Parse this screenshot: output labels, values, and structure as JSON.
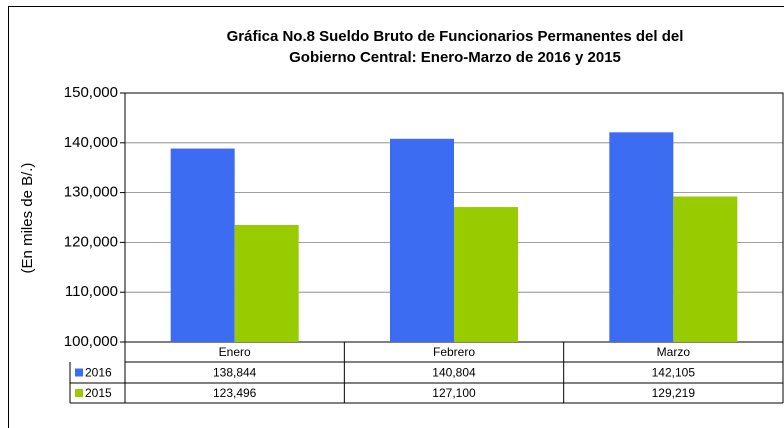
{
  "chart_data": {
    "type": "bar",
    "title": [
      "Gráfica No.8 Sueldo Bruto de Funcionarios Permanentes del del",
      "Gobierno Central: Enero-Marzo de 2016 y 2015"
    ],
    "y_label": "(En miles de B/.)",
    "categories": [
      "Enero",
      "Febrero",
      "Marzo"
    ],
    "series": [
      {
        "name": "2016",
        "color": "#3b6cf2",
        "values": [
          138844,
          140804,
          142105
        ],
        "value_labels": [
          "138,844",
          "140,804",
          "142,105"
        ]
      },
      {
        "name": "2015",
        "color": "#99cc00",
        "values": [
          123496,
          127100,
          129219
        ],
        "value_labels": [
          "123,496",
          "127,100",
          "129,219"
        ]
      }
    ],
    "ylim": [
      100000,
      150000
    ],
    "yticks": [
      {
        "value": 100000,
        "label": "100,000"
      },
      {
        "value": 110000,
        "label": "110,000"
      },
      {
        "value": 120000,
        "label": "120,000"
      },
      {
        "value": 130000,
        "label": "130,000"
      },
      {
        "value": 140000,
        "label": "140,000"
      },
      {
        "value": 150000,
        "label": "150,000"
      }
    ],
    "grid": true
  }
}
